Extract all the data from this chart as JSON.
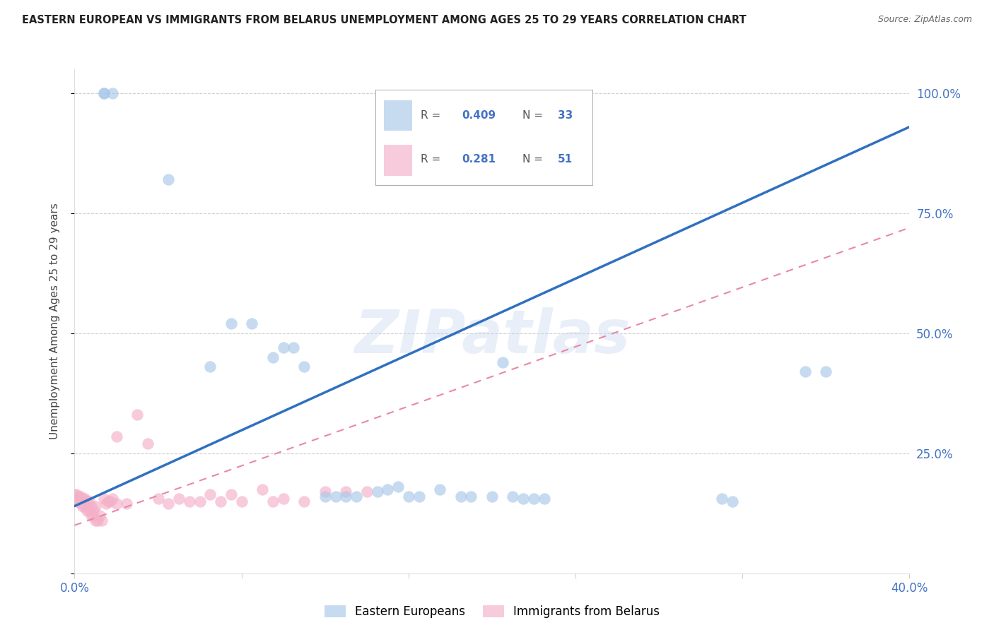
{
  "title": "EASTERN EUROPEAN VS IMMIGRANTS FROM BELARUS UNEMPLOYMENT AMONG AGES 25 TO 29 YEARS CORRELATION CHART",
  "source": "Source: ZipAtlas.com",
  "ylabel": "Unemployment Among Ages 25 to 29 years",
  "xlim": [
    0.0,
    0.4
  ],
  "ylim": [
    0.0,
    1.05
  ],
  "xticks": [
    0.0,
    0.08,
    0.16,
    0.24,
    0.32,
    0.4
  ],
  "yticks": [
    0.0,
    0.25,
    0.5,
    0.75,
    1.0
  ],
  "grid_color": "#d0d0d0",
  "background_color": "#ffffff",
  "watermark": "ZIPatlas",
  "blue_color": "#a8c8e8",
  "pink_color": "#f4b0c8",
  "blue_line_color": "#3070c0",
  "pink_line_color": "#e888a8",
  "R_blue": 0.409,
  "N_blue": 33,
  "R_pink": 0.281,
  "N_pink": 51,
  "blue_line_x0": 0.0,
  "blue_line_y0": 0.14,
  "blue_line_x1": 0.4,
  "blue_line_y1": 0.93,
  "pink_line_x0": 0.0,
  "pink_line_y0": 0.1,
  "pink_line_x1": 0.4,
  "pink_line_y1": 0.72,
  "blue_x": [
    0.014,
    0.014,
    0.018,
    0.045,
    0.065,
    0.075,
    0.085,
    0.095,
    0.1,
    0.105,
    0.11,
    0.12,
    0.125,
    0.13,
    0.135,
    0.145,
    0.15,
    0.155,
    0.16,
    0.165,
    0.175,
    0.185,
    0.19,
    0.2,
    0.205,
    0.21,
    0.215,
    0.22,
    0.225,
    0.31,
    0.315,
    0.35,
    0.36
  ],
  "blue_y": [
    1.0,
    1.0,
    1.0,
    0.82,
    0.43,
    0.52,
    0.52,
    0.45,
    0.47,
    0.47,
    0.43,
    0.16,
    0.16,
    0.16,
    0.16,
    0.17,
    0.175,
    0.18,
    0.16,
    0.16,
    0.175,
    0.16,
    0.16,
    0.16,
    0.44,
    0.16,
    0.155,
    0.155,
    0.155,
    0.155,
    0.15,
    0.42,
    0.42
  ],
  "pink_x": [
    0.0,
    0.0,
    0.001,
    0.001,
    0.002,
    0.002,
    0.003,
    0.003,
    0.004,
    0.004,
    0.005,
    0.005,
    0.006,
    0.006,
    0.007,
    0.007,
    0.008,
    0.008,
    0.009,
    0.009,
    0.01,
    0.01,
    0.011,
    0.012,
    0.013,
    0.014,
    0.015,
    0.016,
    0.017,
    0.018,
    0.02,
    0.02,
    0.025,
    0.03,
    0.035,
    0.04,
    0.045,
    0.05,
    0.055,
    0.06,
    0.065,
    0.07,
    0.075,
    0.08,
    0.09,
    0.095,
    0.1,
    0.11,
    0.12,
    0.13,
    0.14
  ],
  "pink_y": [
    0.155,
    0.165,
    0.155,
    0.165,
    0.15,
    0.16,
    0.145,
    0.16,
    0.14,
    0.155,
    0.14,
    0.155,
    0.13,
    0.15,
    0.13,
    0.15,
    0.12,
    0.14,
    0.12,
    0.13,
    0.11,
    0.14,
    0.11,
    0.12,
    0.11,
    0.155,
    0.145,
    0.15,
    0.15,
    0.155,
    0.145,
    0.285,
    0.145,
    0.33,
    0.27,
    0.155,
    0.145,
    0.155,
    0.15,
    0.15,
    0.165,
    0.15,
    0.165,
    0.15,
    0.175,
    0.15,
    0.155,
    0.15,
    0.17,
    0.17,
    0.17
  ]
}
